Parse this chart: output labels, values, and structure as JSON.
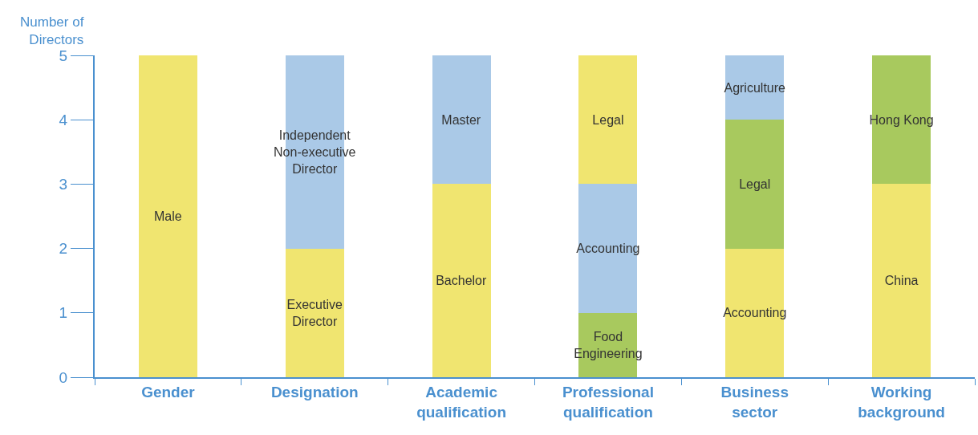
{
  "chart_data": {
    "type": "bar",
    "stacked": true,
    "ylabel": "Number of\nDirectors",
    "categories": [
      "Gender",
      "Designation",
      "Academic qualification",
      "Professional qualification",
      "Business sector",
      "Working background"
    ],
    "series": [
      {
        "values": [
          5,
          2,
          3,
          1,
          2,
          3
        ],
        "colors": [
          "#f0e570",
          "#f0e570",
          "#f0e570",
          "#a8c95e",
          "#f0e570",
          "#f0e570"
        ],
        "value_labels": [
          "Male",
          "Executive\nDirector",
          "Bachelor",
          "Food\nEngineering",
          "Accounting",
          "China"
        ]
      },
      {
        "values": [
          null,
          3,
          2,
          2,
          2,
          2
        ],
        "colors": [
          "#aac9e7",
          "#aac9e7",
          "#aac9e7",
          "#aac9e7",
          "#a8c95e",
          "#a8c95e"
        ],
        "value_labels": [
          null,
          "Independent\nNon-executive\nDirector",
          "Master",
          "Accounting",
          "Legal",
          "Hong Kong"
        ]
      },
      {
        "values": [
          null,
          null,
          null,
          2,
          1,
          null
        ],
        "colors": [
          "#f0e570",
          "#f0e570",
          "#f0e570",
          "#f0e570",
          "#aac9e7",
          "#aac9e7"
        ],
        "value_labels": [
          null,
          null,
          null,
          "Legal",
          "Agriculture",
          null
        ]
      }
    ],
    "ylim": [
      0,
      5
    ],
    "yticks": [
      0,
      1,
      2,
      3,
      4,
      5
    ],
    "grid": false
  }
}
